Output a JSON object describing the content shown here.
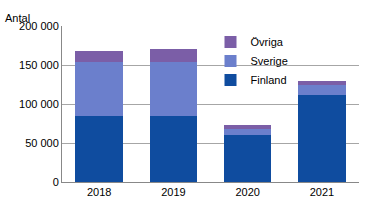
{
  "chart_data": {
    "type": "bar",
    "stacked": true,
    "ylabel": "Antal",
    "categories": [
      "2018",
      "2019",
      "2020",
      "2021"
    ],
    "series": [
      {
        "name": "Finland",
        "color": "#0f4c9f",
        "values": [
          84000,
          84000,
          60000,
          111000
        ]
      },
      {
        "name": "Sverige",
        "color": "#6b7fcc",
        "values": [
          70000,
          70000,
          8000,
          13000
        ]
      },
      {
        "name": "Övriga",
        "color": "#7b5ea7",
        "values": [
          14000,
          16000,
          5000,
          6000
        ]
      }
    ],
    "ylim": [
      0,
      200000
    ],
    "yticks": [
      0,
      {
        "value": 50000,
        "label": "50 000"
      },
      {
        "value": 100000,
        "label": "100 000"
      },
      {
        "value": 150000,
        "label": "150 000"
      },
      {
        "value": 200000,
        "label": "200 000"
      }
    ],
    "grid": true,
    "legend": "top"
  }
}
